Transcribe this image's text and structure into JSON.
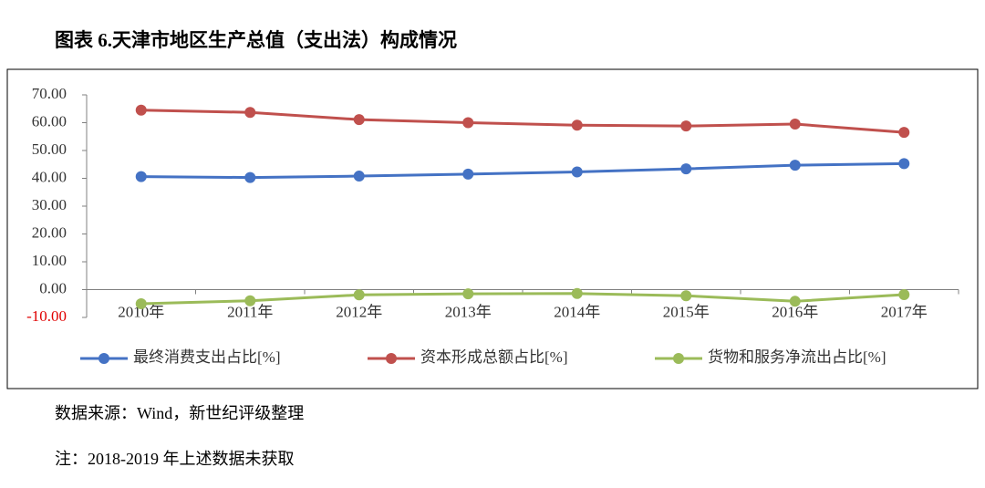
{
  "chart_data": {
    "type": "line",
    "title": "图表 6.天津市地区生产总值（支出法）构成情况",
    "categories": [
      "2010年",
      "2011年",
      "2012年",
      "2013年",
      "2014年",
      "2015年",
      "2016年",
      "2017年"
    ],
    "series": [
      {
        "name": "最终消费支出占比[%]",
        "color": "#4472c4",
        "values": [
          40.6,
          40.3,
          40.8,
          41.5,
          42.3,
          43.4,
          44.7,
          45.3
        ]
      },
      {
        "name": "资本形成总额占比[%]",
        "color": "#c0504d",
        "values": [
          64.5,
          63.7,
          61.1,
          60.0,
          59.1,
          58.8,
          59.5,
          56.5
        ]
      },
      {
        "name": "货物和服务净流出占比[%]",
        "color": "#9bbb59",
        "values": [
          -5.1,
          -4.0,
          -1.9,
          -1.5,
          -1.4,
          -2.2,
          -4.2,
          -1.8
        ]
      }
    ],
    "ylim": [
      -10,
      70
    ],
    "yticks": [
      {
        "value": -10,
        "label": "-10.00"
      },
      {
        "value": 0,
        "label": "0.00"
      },
      {
        "value": 10,
        "label": "10.00"
      },
      {
        "value": 20,
        "label": "20.00"
      },
      {
        "value": 30,
        "label": "30.00"
      },
      {
        "value": 40,
        "label": "40.00"
      },
      {
        "value": 50,
        "label": "50.00"
      },
      {
        "value": 60,
        "label": "60.00"
      },
      {
        "value": 70,
        "label": "70.00"
      }
    ],
    "grid": false,
    "legend": "bottom",
    "source": "数据来源：Wind，新世纪评级整理",
    "note": "注：2018-2019 年上述数据未获取"
  }
}
